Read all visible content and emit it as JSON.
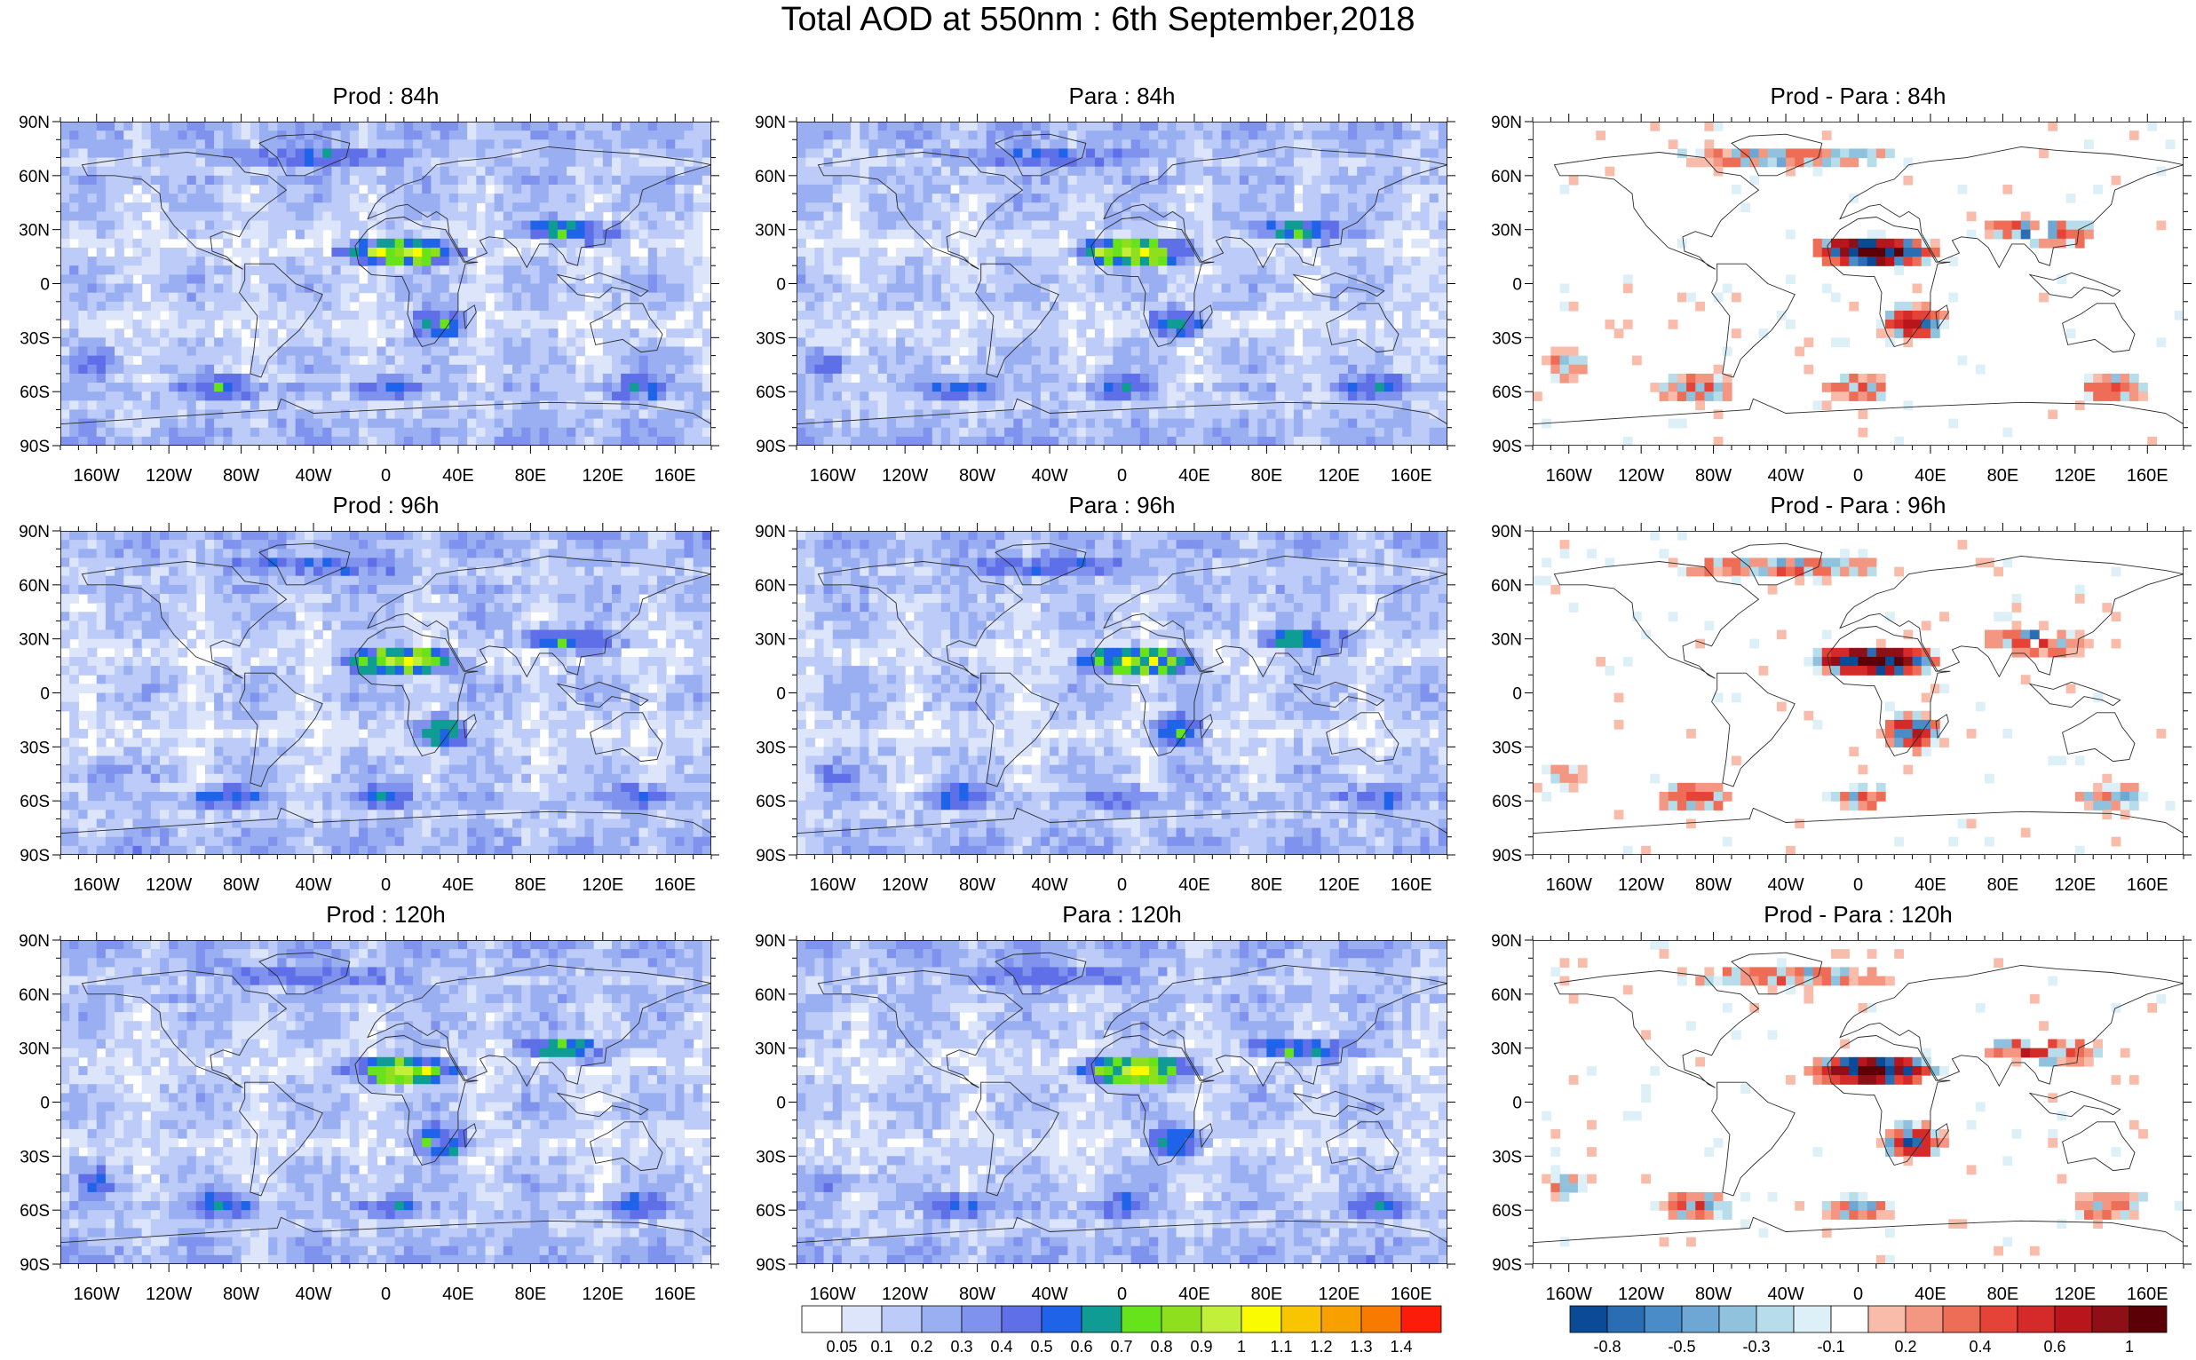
{
  "title": "Total AOD at 550nm : 6th September,2018",
  "panels": [
    {
      "id": "prod-84h",
      "title": "Prod : 84h",
      "kind": "aod",
      "seed": 11
    },
    {
      "id": "para-84h",
      "title": "Para : 84h",
      "kind": "aod",
      "seed": 23
    },
    {
      "id": "diff-84h",
      "title": "Prod - Para : 84h",
      "kind": "diff",
      "seed": 37
    },
    {
      "id": "prod-96h",
      "title": "Prod : 96h",
      "kind": "aod",
      "seed": 41
    },
    {
      "id": "para-96h",
      "title": "Para : 96h",
      "kind": "aod",
      "seed": 53
    },
    {
      "id": "diff-96h",
      "title": "Prod - Para : 96h",
      "kind": "diff",
      "seed": 67
    },
    {
      "id": "prod-120h",
      "title": "Prod : 120h",
      "kind": "aod",
      "seed": 71
    },
    {
      "id": "para-120h",
      "title": "Para : 120h",
      "kind": "aod",
      "seed": 83
    },
    {
      "id": "diff-120h",
      "title": "Prod - Para : 120h",
      "kind": "diff",
      "seed": 97
    }
  ],
  "lat_labels": [
    "90N",
    "60N",
    "30N",
    "0",
    "30S",
    "60S",
    "90S"
  ],
  "lon_labels": [
    "160W",
    "120W",
    "80W",
    "40W",
    "0",
    "40E",
    "80E",
    "120E",
    "160E"
  ],
  "aod_colorbar": {
    "colors": [
      "#ffffff",
      "#dde5fb",
      "#bccbf7",
      "#9aaff2",
      "#7f92ee",
      "#5f6fe7",
      "#1e63e8",
      "#0e9c95",
      "#66e31a",
      "#8ee01e",
      "#c2f03a",
      "#fbfb00",
      "#f9c500",
      "#f8a000",
      "#f87a00",
      "#fb1c0a"
    ],
    "labels": [
      "0.05",
      "0.1",
      "0.2",
      "0.3",
      "0.4",
      "0.5",
      "0.6",
      "0.7",
      "0.8",
      "0.9",
      "1",
      "1.1",
      "1.2",
      "1.3",
      "1.4"
    ]
  },
  "diff_colorbar": {
    "colors": [
      "#0b4a96",
      "#2a6db3",
      "#4a8cc8",
      "#6ea6d4",
      "#90c2de",
      "#b7dcea",
      "#ddeff7",
      "#ffffff",
      "#f9bcaa",
      "#f39682",
      "#ee6d56",
      "#e54337",
      "#d42a2a",
      "#b8151d",
      "#8e0f16",
      "#5c0008"
    ],
    "labels": [
      "-0.8",
      "-0.5",
      "-0.3",
      "-0.1",
      "0.2",
      "0.4",
      "0.6",
      "1"
    ]
  }
}
